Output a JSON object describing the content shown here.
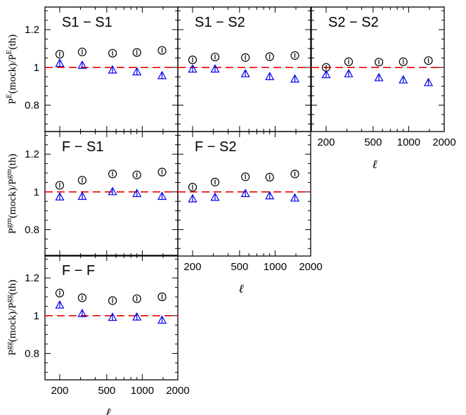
{
  "chart_data": [
    {
      "type": "scatter",
      "title": "S1 − S1",
      "row": 1,
      "col": 1,
      "xscale": "log",
      "xlim": [
        150,
        2000
      ],
      "ylim": [
        0.66,
        1.32
      ],
      "xticks": [
        "200",
        "500",
        "1000",
        "2000"
      ],
      "yticks": [
        "0.8",
        "1",
        "1.2"
      ],
      "ylabel_parts": {
        "p1": "P",
        "s1": "E",
        "m": "(mock)/P",
        "s2": "E",
        "e": "(th)"
      },
      "show_xticklabels": false,
      "reference_line": 1,
      "x": [
        200,
        310,
        560,
        900,
        1470
      ],
      "series": [
        {
          "marker": "circle",
          "color": "#000000",
          "values": [
            1.07,
            1.082,
            1.075,
            1.079,
            1.09
          ]
        },
        {
          "marker": "triangle",
          "color": "#0000ee",
          "values": [
            1.02,
            1.01,
            0.985,
            0.975,
            0.955
          ]
        }
      ]
    },
    {
      "type": "scatter",
      "title": "S1 − S2",
      "row": 1,
      "col": 2,
      "xscale": "log",
      "xlim": [
        150,
        2000
      ],
      "ylim": [
        0.66,
        1.32
      ],
      "xticks": [
        "200",
        "500",
        "1000",
        "2000"
      ],
      "yticks": [
        "0.8",
        "1",
        "1.2"
      ],
      "show_xticklabels": false,
      "reference_line": 1,
      "x": [
        200,
        310,
        560,
        900,
        1470
      ],
      "series": [
        {
          "marker": "circle",
          "color": "#000000",
          "values": [
            1.04,
            1.055,
            1.052,
            1.057,
            1.063
          ]
        },
        {
          "marker": "triangle",
          "color": "#0000ee",
          "values": [
            0.99,
            0.99,
            0.965,
            0.95,
            0.937
          ]
        }
      ]
    },
    {
      "type": "scatter",
      "title": "S2 − S2",
      "row": 1,
      "col": 3,
      "xscale": "log",
      "xlim": [
        150,
        2000
      ],
      "ylim": [
        0.66,
        1.32
      ],
      "xticks": [
        "200",
        "500",
        "1000",
        "2000"
      ],
      "yticks": [
        "0.8",
        "1",
        "1.2"
      ],
      "show_xticklabels": true,
      "xlabel": "ℓ",
      "reference_line": 1,
      "x": [
        200,
        310,
        560,
        900,
        1470
      ],
      "series": [
        {
          "marker": "circle",
          "color": "#000000",
          "values": [
            1.0,
            1.03,
            1.028,
            1.03,
            1.036
          ]
        },
        {
          "marker": "triangle",
          "color": "#0000ee",
          "values": [
            0.96,
            0.965,
            0.944,
            0.932,
            0.918
          ]
        }
      ]
    },
    {
      "type": "scatter",
      "title": "F − S1",
      "row": 2,
      "col": 1,
      "xscale": "log",
      "xlim": [
        150,
        2000
      ],
      "ylim": [
        0.66,
        1.32
      ],
      "xticks": [
        "200",
        "500",
        "1000",
        "2000"
      ],
      "yticks": [
        "0.8",
        "1",
        "1.2"
      ],
      "ylabel_parts": {
        "p1": "P",
        "s1": "gm",
        "m": "(mock)/P",
        "s2": "gm",
        "e": "(th)"
      },
      "show_xticklabels": false,
      "reference_line": 1,
      "x": [
        200,
        310,
        560,
        900,
        1470
      ],
      "series": [
        {
          "marker": "circle",
          "color": "#000000",
          "values": [
            1.035,
            1.062,
            1.095,
            1.09,
            1.105
          ]
        },
        {
          "marker": "triangle",
          "color": "#0000ee",
          "values": [
            0.972,
            0.975,
            1.0,
            0.99,
            0.975
          ]
        }
      ]
    },
    {
      "type": "scatter",
      "title": "F − S2",
      "row": 2,
      "col": 2,
      "xscale": "log",
      "xlim": [
        150,
        2000
      ],
      "ylim": [
        0.66,
        1.32
      ],
      "xticks": [
        "200",
        "500",
        "1000",
        "2000"
      ],
      "yticks": [
        "0.8",
        "1",
        "1.2"
      ],
      "show_xticklabels": true,
      "xlabel": "ℓ",
      "reference_line": 1,
      "x": [
        200,
        310,
        560,
        900,
        1470
      ],
      "series": [
        {
          "marker": "circle",
          "color": "#000000",
          "values": [
            1.025,
            1.052,
            1.08,
            1.078,
            1.095
          ]
        },
        {
          "marker": "triangle",
          "color": "#0000ee",
          "values": [
            0.962,
            0.97,
            0.99,
            0.978,
            0.966
          ]
        }
      ]
    },
    {
      "type": "scatter",
      "title": "F − F",
      "row": 3,
      "col": 1,
      "xscale": "log",
      "xlim": [
        150,
        2000
      ],
      "ylim": [
        0.66,
        1.32
      ],
      "xticks": [
        "200",
        "500",
        "1000",
        "2000"
      ],
      "yticks": [
        "0.8",
        "1",
        "1.2"
      ],
      "ylabel_parts": {
        "p1": "P",
        "s1": "gg",
        "m": "(mock)/P",
        "s2": "gg",
        "e": "(th)"
      },
      "show_xticklabels": true,
      "xlabel": "ℓ",
      "reference_line": 1,
      "x": [
        200,
        310,
        560,
        900,
        1470
      ],
      "series": [
        {
          "marker": "circle",
          "color": "#000000",
          "values": [
            1.12,
            1.095,
            1.08,
            1.09,
            1.1
          ]
        },
        {
          "marker": "triangle",
          "color": "#0000ee",
          "values": [
            1.055,
            1.01,
            0.99,
            0.992,
            0.975
          ]
        }
      ]
    }
  ],
  "colors": {
    "reference_line": "#ee0000",
    "frame": "#000000"
  }
}
